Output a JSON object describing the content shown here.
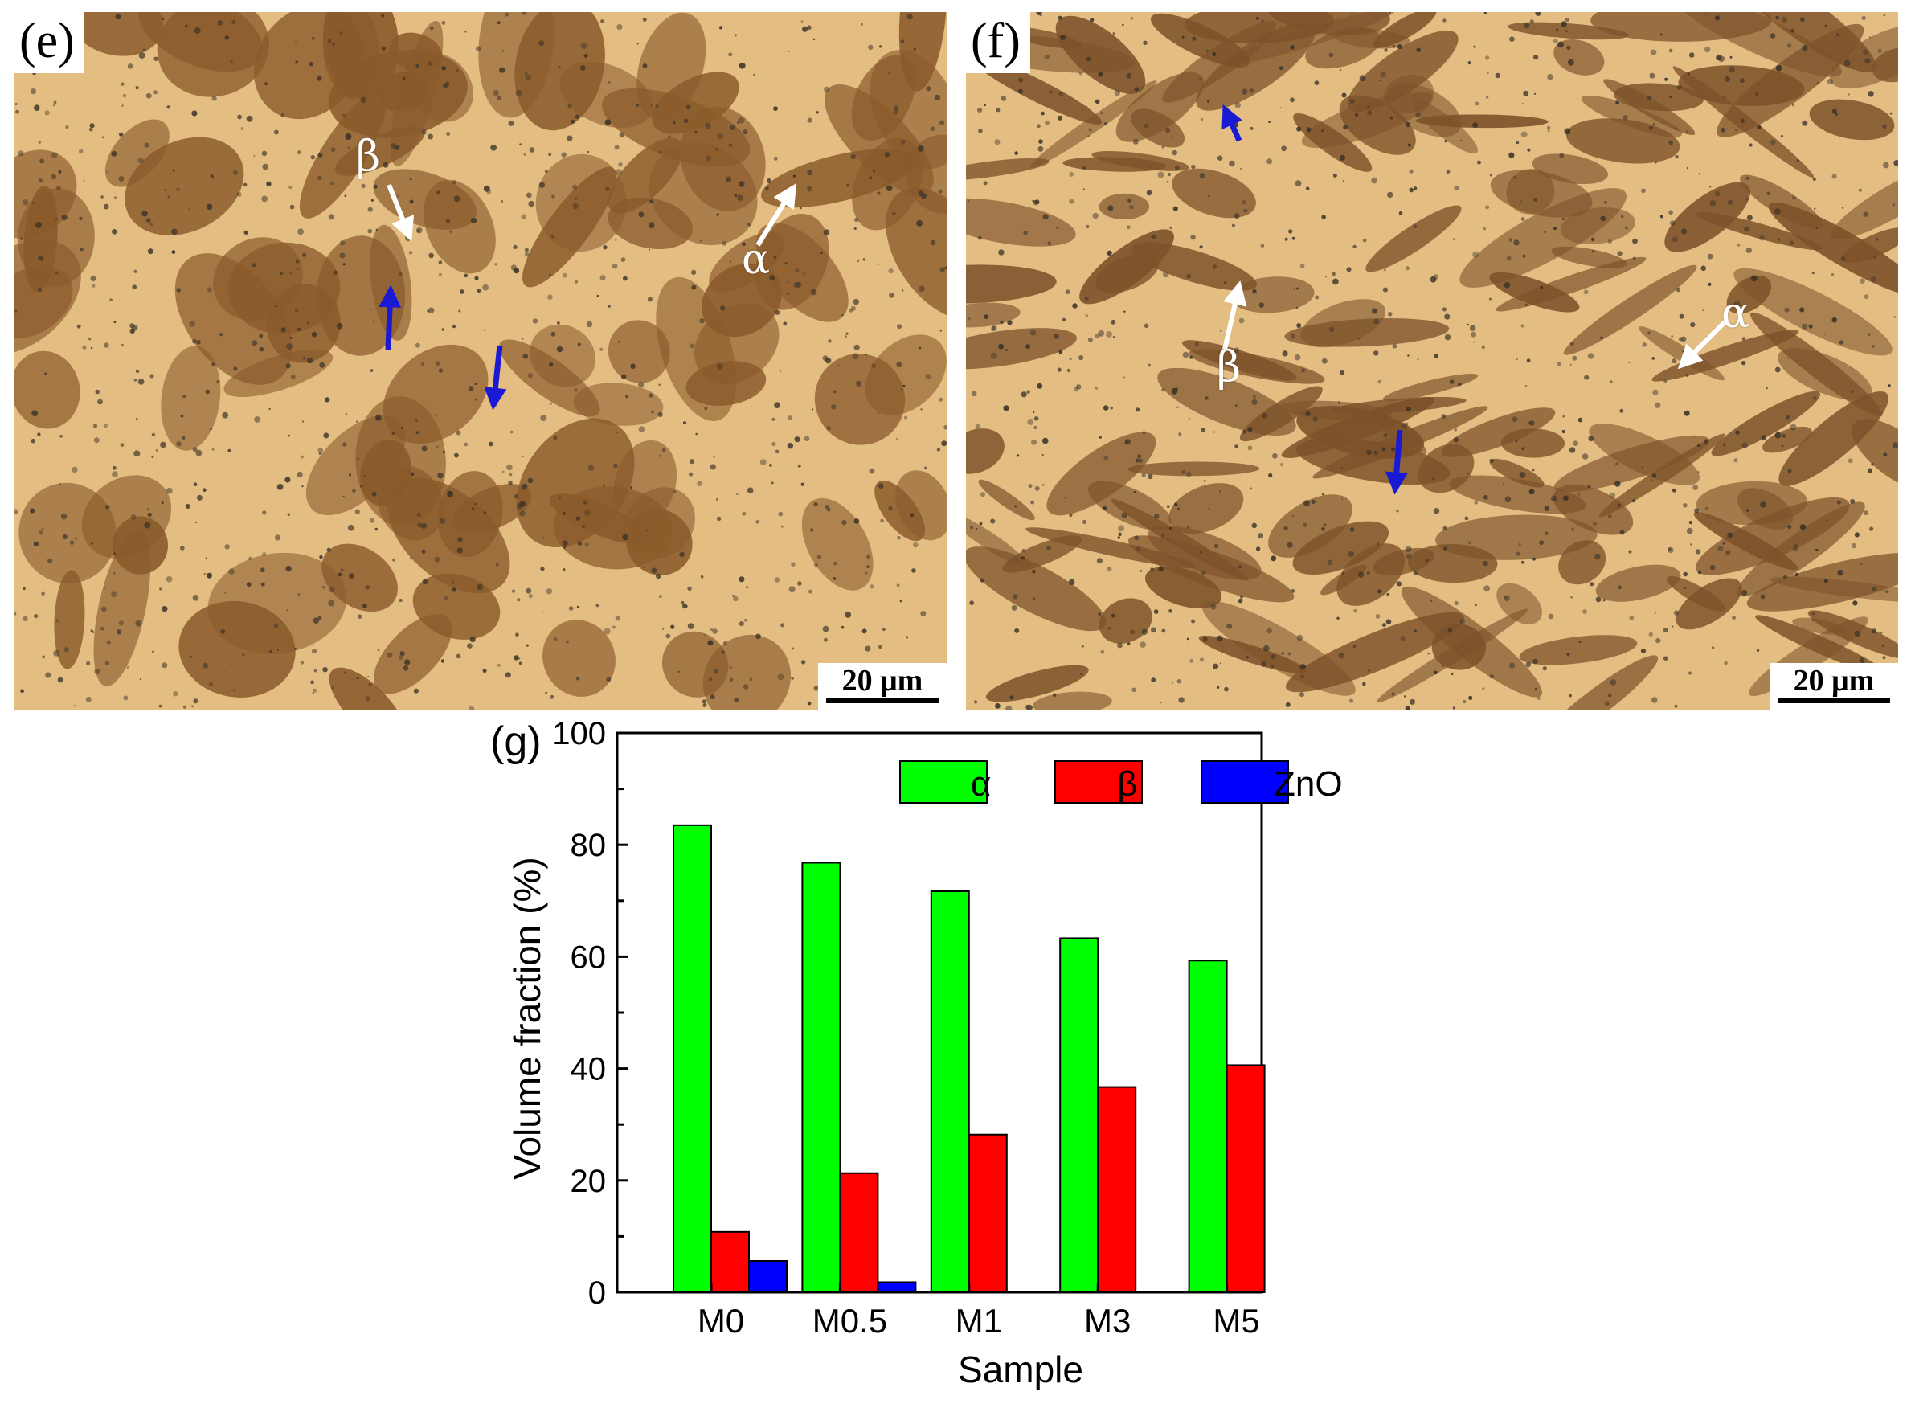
{
  "micrographs": [
    {
      "id": "e",
      "label": "(e)",
      "scale_text": "20 μm",
      "annotations": {
        "alpha": "α",
        "beta": "β"
      },
      "colors": {
        "matrix": "#e3bd82",
        "dark_phase": "#8a5a2b",
        "dark_spots": "#3e3428",
        "marker_arrow": "#1a1ad6",
        "label_arrow": "#ffffff"
      }
    },
    {
      "id": "f",
      "label": "(f)",
      "scale_text": "20 μm",
      "annotations": {
        "alpha": "α",
        "beta": "β"
      },
      "colors": {
        "matrix": "#e3bd82",
        "dark_phase": "#7d522a",
        "dark_spots": "#3a3228",
        "marker_arrow": "#1a1ad6",
        "label_arrow": "#ffffff"
      }
    }
  ],
  "chart_panel_label": "(g)",
  "chart_data": {
    "type": "bar",
    "xlabel": "Sample",
    "ylabel": "Volume fraction (%)",
    "ylim": [
      0,
      100
    ],
    "yticks": [
      0,
      20,
      40,
      60,
      80,
      100
    ],
    "categories": [
      "M0",
      "M0.5",
      "M1",
      "M3",
      "M5"
    ],
    "series": [
      {
        "name": "α",
        "color": "#00ff00",
        "values": [
          83.5,
          76.8,
          71.7,
          63.3,
          59.3
        ]
      },
      {
        "name": "β",
        "color": "#ff0000",
        "values": [
          10.8,
          21.3,
          28.2,
          36.7,
          40.6
        ]
      },
      {
        "name": "ZnO",
        "color": "#0000ff",
        "values": [
          5.6,
          1.8,
          0,
          0,
          0
        ]
      }
    ],
    "legend_position": "top-right",
    "grid": false
  }
}
